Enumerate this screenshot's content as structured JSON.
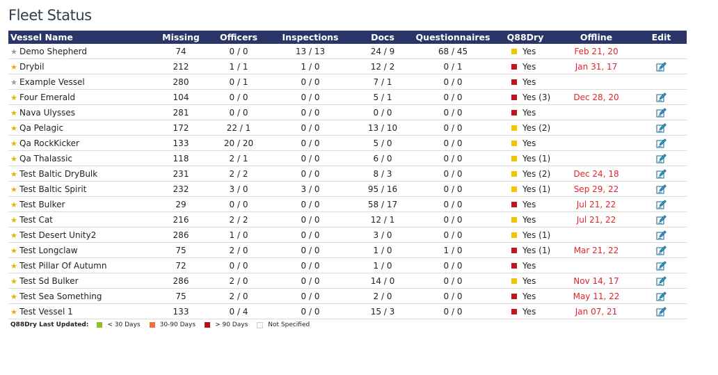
{
  "page": {
    "title": "Fleet Status"
  },
  "colors": {
    "header_bg": "#2b3668",
    "yellow": "#f5c400",
    "red": "#c0141e",
    "green": "#8dc21f",
    "orange": "#ef6f3c",
    "darkred": "#b3111b",
    "offline_red": "#e0242b"
  },
  "table": {
    "headers": {
      "vessel": "Vessel Name",
      "missing": "Missing",
      "officers": "Officers",
      "inspections": "Inspections",
      "docs": "Docs",
      "questionnaires": "Questionnaires",
      "q88dry": "Q88Dry",
      "offline": "Offline",
      "edit": "Edit"
    },
    "rows": [
      {
        "star": "grey",
        "name": "Demo Shepherd",
        "missing": "74",
        "officers": "0 / 0",
        "inspections": "13 / 13",
        "docs": "24 / 9",
        "questionnaires": "68 / 45",
        "q88_color": "yellow",
        "q88": "Yes",
        "offline": "Feb 21, 20",
        "edit": false
      },
      {
        "star": "gold",
        "name": "Drybil",
        "missing": "212",
        "officers": "1 / 1",
        "inspections": "1 / 0",
        "docs": "12 / 2",
        "questionnaires": "0 / 1",
        "q88_color": "red",
        "q88": "Yes",
        "offline": "Jan 31, 17",
        "edit": true
      },
      {
        "star": "grey",
        "name": "Example Vessel",
        "missing": "280",
        "officers": "0 / 1",
        "inspections": "0 / 0",
        "docs": "7 / 1",
        "questionnaires": "0 / 0",
        "q88_color": "red",
        "q88": "Yes",
        "offline": "",
        "edit": false
      },
      {
        "star": "gold",
        "name": "Four Emerald",
        "missing": "104",
        "officers": "0 / 0",
        "inspections": "0 / 0",
        "docs": "5 / 1",
        "questionnaires": "0 / 0",
        "q88_color": "red",
        "q88": "Yes (3)",
        "offline": "Dec 28, 20",
        "edit": true
      },
      {
        "star": "gold",
        "name": "Nava Ulysses",
        "missing": "281",
        "officers": "0 / 0",
        "inspections": "0 / 0",
        "docs": "0 / 0",
        "questionnaires": "0 / 0",
        "q88_color": "red",
        "q88": "Yes",
        "offline": "",
        "edit": true
      },
      {
        "star": "gold",
        "name": "Qa Pelagic",
        "missing": "172",
        "officers": "22 / 1",
        "inspections": "0 / 0",
        "docs": "13 / 10",
        "questionnaires": "0 / 0",
        "q88_color": "yellow",
        "q88": "Yes (2)",
        "offline": "",
        "edit": true
      },
      {
        "star": "gold",
        "name": "Qa RockKicker",
        "missing": "133",
        "officers": "20 / 20",
        "inspections": "0 / 0",
        "docs": "5 / 0",
        "questionnaires": "0 / 0",
        "q88_color": "yellow",
        "q88": "Yes",
        "offline": "",
        "edit": true
      },
      {
        "star": "gold",
        "name": "Qa Thalassic",
        "missing": "118",
        "officers": "2 / 1",
        "inspections": "0 / 0",
        "docs": "6 / 0",
        "questionnaires": "0 / 0",
        "q88_color": "yellow",
        "q88": "Yes (1)",
        "offline": "",
        "edit": true
      },
      {
        "star": "gold",
        "name": "Test Baltic DryBulk",
        "missing": "231",
        "officers": "2 / 2",
        "inspections": "0 / 0",
        "docs": "8 / 3",
        "questionnaires": "0 / 0",
        "q88_color": "yellow",
        "q88": "Yes (2)",
        "offline": "Dec 24, 18",
        "edit": true
      },
      {
        "star": "gold",
        "name": "Test Baltic Spirit",
        "missing": "232",
        "officers": "3 / 0",
        "inspections": "3 / 0",
        "docs": "95 / 16",
        "questionnaires": "0 / 0",
        "q88_color": "yellow",
        "q88": "Yes (1)",
        "offline": "Sep 29, 22",
        "edit": true
      },
      {
        "star": "gold",
        "name": "Test Bulker",
        "missing": "29",
        "officers": "0 / 0",
        "inspections": "0 / 0",
        "docs": "58 / 17",
        "questionnaires": "0 / 0",
        "q88_color": "red",
        "q88": "Yes",
        "offline": "Jul 21, 22",
        "edit": true
      },
      {
        "star": "gold",
        "name": "Test Cat",
        "missing": "216",
        "officers": "2 / 2",
        "inspections": "0 / 0",
        "docs": "12 / 1",
        "questionnaires": "0 / 0",
        "q88_color": "yellow",
        "q88": "Yes",
        "offline": "Jul 21, 22",
        "edit": true
      },
      {
        "star": "gold",
        "name": "Test Desert Unity2",
        "missing": "286",
        "officers": "1 / 0",
        "inspections": "0 / 0",
        "docs": "3 / 0",
        "questionnaires": "0 / 0",
        "q88_color": "yellow",
        "q88": "Yes (1)",
        "offline": "",
        "edit": true
      },
      {
        "star": "gold",
        "name": "Test Longclaw",
        "missing": "75",
        "officers": "2 / 0",
        "inspections": "0 / 0",
        "docs": "1 / 0",
        "questionnaires": "1 / 0",
        "q88_color": "red",
        "q88": "Yes (1)",
        "offline": "Mar 21, 22",
        "edit": true
      },
      {
        "star": "gold",
        "name": "Test Pillar Of Autumn",
        "missing": "72",
        "officers": "0 / 0",
        "inspections": "0 / 0",
        "docs": "1 / 0",
        "questionnaires": "0 / 0",
        "q88_color": "red",
        "q88": "Yes",
        "offline": "",
        "edit": true
      },
      {
        "star": "gold",
        "name": "Test Sd Bulker",
        "missing": "286",
        "officers": "2 / 0",
        "inspections": "0 / 0",
        "docs": "14 / 0",
        "questionnaires": "0 / 0",
        "q88_color": "yellow",
        "q88": "Yes",
        "offline": "Nov 14, 17",
        "edit": true
      },
      {
        "star": "gold",
        "name": "Test Sea Something",
        "missing": "75",
        "officers": "2 / 0",
        "inspections": "0 / 0",
        "docs": "2 / 0",
        "questionnaires": "0 / 0",
        "q88_color": "red",
        "q88": "Yes",
        "offline": "May 11, 22",
        "edit": true
      },
      {
        "star": "gold",
        "name": "Test Vessel 1",
        "missing": "133",
        "officers": "0 / 4",
        "inspections": "0 / 0",
        "docs": "15 / 3",
        "questionnaires": "0 / 0",
        "q88_color": "red",
        "q88": "Yes",
        "offline": "Jan 07, 21",
        "edit": true
      }
    ]
  },
  "legend": {
    "title": "Q88Dry Last Updated:",
    "items": [
      {
        "label": "< 30 Days",
        "color": "green"
      },
      {
        "label": "30-90 Days",
        "color": "orange"
      },
      {
        "label": "> 90 Days",
        "color": "darkred"
      },
      {
        "label": "Not Specified",
        "color": "none"
      }
    ]
  }
}
